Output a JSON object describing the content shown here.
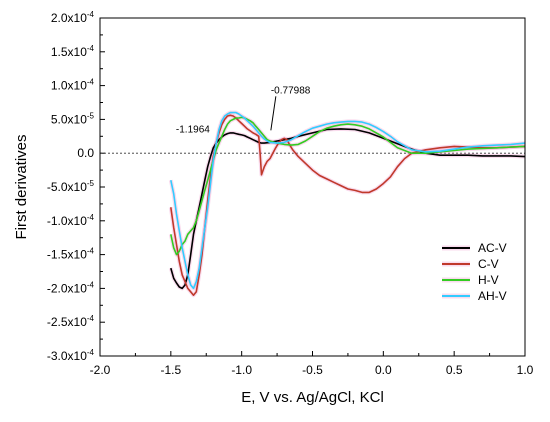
{
  "chart_data": {
    "type": "line",
    "title": "",
    "xlabel": "E, V vs. Ag/AgCl, KCl",
    "ylabel": "First derivatives",
    "xlim": [
      -2.0,
      1.0
    ],
    "ylim": [
      -0.0003,
      0.0002
    ],
    "x_ticks": [
      -2.0,
      -1.5,
      -1.0,
      -0.5,
      0.0,
      0.5,
      1.0
    ],
    "x_tick_labels": [
      "-2.0",
      "-1.5",
      "-1.0",
      "-0.5",
      "0.0",
      "0.5",
      "1.0"
    ],
    "y_ticks": [
      0.0002,
      0.00015,
      0.0001,
      5e-05,
      0.0,
      -5e-05,
      -0.0001,
      -0.00015,
      -0.0002,
      -0.00025,
      -0.0003
    ],
    "y_tick_labels": [
      {
        "mant": "2.0x10",
        "exp": "-4"
      },
      {
        "mant": "1.5x10",
        "exp": "-4"
      },
      {
        "mant": "1.0x10",
        "exp": "-4"
      },
      {
        "mant": "5.0x10",
        "exp": "-5"
      },
      {
        "mant": "0.0",
        "exp": ""
      },
      {
        "mant": "-5.0x10",
        "exp": "-5"
      },
      {
        "mant": "-1.0x10",
        "exp": "-4"
      },
      {
        "mant": "-1.5x10",
        "exp": "-4"
      },
      {
        "mant": "-2.0x10",
        "exp": "-4"
      },
      {
        "mant": "-2.5x10",
        "exp": "-4"
      },
      {
        "mant": "-3.0x10",
        "exp": "-4"
      }
    ],
    "zero_line": true,
    "grid": false,
    "legend_position": "right",
    "annotations": [
      {
        "text": "-1.1964",
        "x": -1.1964,
        "y": 2.8e-05
      },
      {
        "text": "-0.77988",
        "x": -0.77988,
        "y": 2.2e-05
      }
    ],
    "series": [
      {
        "name": "AC-V",
        "color": "#000000",
        "halo": "#ee99cc",
        "x": [
          -1.5,
          -1.48,
          -1.46,
          -1.44,
          -1.42,
          -1.4,
          -1.38,
          -1.36,
          -1.34,
          -1.32,
          -1.3,
          -1.28,
          -1.26,
          -1.24,
          -1.22,
          -1.2,
          -1.18,
          -1.16,
          -1.14,
          -1.12,
          -1.1,
          -1.08,
          -1.06,
          -1.04,
          -1.02,
          -1.0,
          -0.98,
          -0.96,
          -0.94,
          -0.92,
          -0.9,
          -0.88,
          -0.86,
          -0.84,
          -0.8,
          -0.75,
          -0.7,
          -0.65,
          -0.6,
          -0.5,
          -0.4,
          -0.3,
          -0.2,
          -0.1,
          0.0,
          0.1,
          0.2,
          0.3,
          0.4,
          0.5,
          0.6,
          0.7,
          0.8,
          0.9,
          1.0
        ],
        "y": [
          -0.00017,
          -0.000185,
          -0.000192,
          -0.000198,
          -0.0002,
          -0.000195,
          -0.00018,
          -0.00015,
          -0.00012,
          -0.0001,
          -8e-05,
          -6e-05,
          -4e-05,
          -2e-05,
          -5e-06,
          8e-06,
          1.5e-05,
          2e-05,
          2.4e-05,
          2.7e-05,
          2.9e-05,
          3e-05,
          3e-05,
          2.9e-05,
          2.8e-05,
          2.7e-05,
          2.6e-05,
          2.4e-05,
          2.2e-05,
          2e-05,
          1.8e-05,
          1.6e-05,
          1.5e-05,
          1.5e-05,
          1.6e-05,
          1.8e-05,
          2e-05,
          2.2e-05,
          2.5e-05,
          3e-05,
          3.5e-05,
          3.6e-05,
          3.5e-05,
          3e-05,
          2.2e-05,
          1.4e-05,
          6e-06,
          0.0,
          -3e-06,
          -3e-06,
          -3e-06,
          -4e-06,
          -4e-06,
          -4e-06,
          -5e-06
        ]
      },
      {
        "name": "C-V",
        "color": "#c0392b",
        "halo": "#ee99cc",
        "x": [
          -1.5,
          -1.48,
          -1.46,
          -1.44,
          -1.42,
          -1.4,
          -1.38,
          -1.36,
          -1.34,
          -1.32,
          -1.3,
          -1.28,
          -1.26,
          -1.24,
          -1.22,
          -1.2,
          -1.18,
          -1.16,
          -1.14,
          -1.12,
          -1.1,
          -1.08,
          -1.06,
          -1.04,
          -1.02,
          -1.0,
          -0.98,
          -0.96,
          -0.94,
          -0.92,
          -0.9,
          -0.88,
          -0.87,
          -0.86,
          -0.84,
          -0.82,
          -0.8,
          -0.78,
          -0.76,
          -0.74,
          -0.72,
          -0.7,
          -0.68,
          -0.66,
          -0.64,
          -0.6,
          -0.55,
          -0.5,
          -0.45,
          -0.4,
          -0.35,
          -0.3,
          -0.25,
          -0.2,
          -0.15,
          -0.1,
          -0.05,
          0.0,
          0.05,
          0.1,
          0.15,
          0.2,
          0.3,
          0.4,
          0.5,
          0.6,
          0.7,
          0.8,
          0.9,
          1.0
        ],
        "y": [
          -8e-05,
          -0.00011,
          -0.000135,
          -0.00016,
          -0.00018,
          -0.00019,
          -0.0002,
          -0.000205,
          -0.00021,
          -0.000205,
          -0.00018,
          -0.00015,
          -0.00011,
          -7e-05,
          -3.5e-05,
          -5e-06,
          1.5e-05,
          3e-05,
          4.2e-05,
          5e-05,
          5.5e-05,
          5.6e-05,
          5.5e-05,
          5.2e-05,
          4.8e-05,
          4.4e-05,
          4e-05,
          3.6e-05,
          3.3e-05,
          3e-05,
          2.8e-05,
          2.5e-05,
          0.0,
          -3.2e-05,
          -2e-05,
          -1.2e-05,
          -8e-06,
          0.0,
          8e-06,
          1.5e-05,
          2e-05,
          2.2e-05,
          2e-05,
          1.2e-05,
          5e-06,
          -5e-06,
          -1.5e-05,
          -2.5e-05,
          -3.3e-05,
          -3.8e-05,
          -4.3e-05,
          -4.8e-05,
          -5.3e-05,
          -5.5e-05,
          -5.8e-05,
          -5.8e-05,
          -5.3e-05,
          -4.5e-05,
          -3.5e-05,
          -2e-05,
          -8e-06,
          0.0,
          5e-06,
          8e-06,
          1e-05,
          9e-06,
          8e-06,
          8e-06,
          9e-06,
          1e-05
        ]
      },
      {
        "name": "H-V",
        "color": "#33cc22",
        "halo": "#ee99cc",
        "x": [
          -1.5,
          -1.48,
          -1.46,
          -1.44,
          -1.42,
          -1.4,
          -1.38,
          -1.36,
          -1.34,
          -1.32,
          -1.3,
          -1.28,
          -1.26,
          -1.24,
          -1.22,
          -1.2,
          -1.18,
          -1.16,
          -1.14,
          -1.12,
          -1.1,
          -1.08,
          -1.06,
          -1.04,
          -1.02,
          -1.0,
          -0.98,
          -0.96,
          -0.94,
          -0.92,
          -0.9,
          -0.88,
          -0.86,
          -0.84,
          -0.82,
          -0.8,
          -0.75,
          -0.7,
          -0.65,
          -0.6,
          -0.55,
          -0.5,
          -0.45,
          -0.4,
          -0.35,
          -0.3,
          -0.25,
          -0.2,
          -0.15,
          -0.1,
          -0.05,
          0.0,
          0.05,
          0.1,
          0.2,
          0.3,
          0.4,
          0.5,
          0.6,
          0.7,
          0.8,
          0.9,
          1.0
        ],
        "y": [
          -0.00012,
          -0.00014,
          -0.00015,
          -0.000145,
          -0.000135,
          -0.00013,
          -0.00012,
          -0.000115,
          -0.00011,
          -0.0001,
          -8.5e-05,
          -7e-05,
          -5.5e-05,
          -4e-05,
          -2.5e-05,
          -1e-05,
          5e-06,
          1.5e-05,
          2.5e-05,
          3.5e-05,
          4.3e-05,
          4.8e-05,
          5e-05,
          5.2e-05,
          5.2e-05,
          5.3e-05,
          5.2e-05,
          5e-05,
          4.8e-05,
          4.5e-05,
          4e-05,
          3.5e-05,
          3e-05,
          2.5e-05,
          2e-05,
          1.8e-05,
          1.5e-05,
          1.3e-05,
          1.2e-05,
          1.3e-05,
          1.8e-05,
          2.5e-05,
          3.2e-05,
          3.7e-05,
          4e-05,
          4.2e-05,
          4.3e-05,
          4.2e-05,
          4e-05,
          3.6e-05,
          3e-05,
          2.4e-05,
          1.6e-05,
          8e-06,
          0.0,
          0.0,
          2e-06,
          4e-06,
          6e-06,
          7e-06,
          8e-06,
          9e-06,
          1e-05
        ]
      },
      {
        "name": "AH-V",
        "color": "#33ccff",
        "halo": "#ee99cc",
        "x": [
          -1.5,
          -1.48,
          -1.46,
          -1.44,
          -1.42,
          -1.4,
          -1.38,
          -1.36,
          -1.34,
          -1.32,
          -1.3,
          -1.28,
          -1.26,
          -1.24,
          -1.22,
          -1.2,
          -1.18,
          -1.16,
          -1.14,
          -1.12,
          -1.1,
          -1.08,
          -1.06,
          -1.04,
          -1.02,
          -1.0,
          -0.98,
          -0.96,
          -0.94,
          -0.92,
          -0.9,
          -0.88,
          -0.86,
          -0.84,
          -0.82,
          -0.8,
          -0.75,
          -0.7,
          -0.65,
          -0.6,
          -0.55,
          -0.5,
          -0.45,
          -0.4,
          -0.35,
          -0.3,
          -0.25,
          -0.2,
          -0.15,
          -0.1,
          -0.05,
          0.0,
          0.05,
          0.1,
          0.2,
          0.3,
          0.4,
          0.5,
          0.6,
          0.7,
          0.8,
          0.9,
          1.0
        ],
        "y": [
          -4e-05,
          -6e-05,
          -9e-05,
          -0.000115,
          -0.00014,
          -0.00016,
          -0.00018,
          -0.000195,
          -0.0002,
          -0.00019,
          -0.00017,
          -0.00014,
          -0.00011,
          -8e-05,
          -4.5e-05,
          -1e-05,
          1.5e-05,
          3.5e-05,
          4.8e-05,
          5.5e-05,
          5.8e-05,
          6e-05,
          6e-05,
          6e-05,
          5.8e-05,
          5.5e-05,
          5.2e-05,
          4.8e-05,
          4.4e-05,
          4e-05,
          3.5e-05,
          3e-05,
          2.5e-05,
          2.1e-05,
          1.8e-05,
          1.6e-05,
          1.5e-05,
          1.6e-05,
          2e-05,
          2.6e-05,
          3.2e-05,
          3.7e-05,
          4e-05,
          4.3e-05,
          4.5e-05,
          4.6e-05,
          4.7e-05,
          4.7e-05,
          4.6e-05,
          4.3e-05,
          3.8e-05,
          3.2e-05,
          2.5e-05,
          1.7e-05,
          5e-06,
          2e-06,
          3e-06,
          6e-06,
          9e-06,
          1.1e-05,
          1.2e-05,
          1.3e-05,
          1.5e-05
        ]
      }
    ]
  }
}
